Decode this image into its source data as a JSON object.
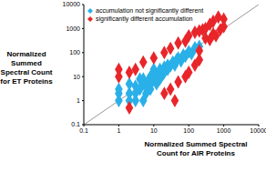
{
  "chart_data": {
    "type": "scatter",
    "log": true,
    "grid": false,
    "legend": "upper left",
    "xlabel": "Normalized Summed Spectral Count for AIR Proteins",
    "ylabel": "Normalized Summed Spectral Count for ET Proteins",
    "xlim": [
      0.1,
      10000
    ],
    "ylim": [
      0.1,
      10000
    ],
    "xticks": [
      0.1,
      1,
      10,
      100,
      1000,
      10000
    ],
    "yticks": [
      0.1,
      1,
      10,
      100,
      1000,
      10000
    ],
    "series": [
      {
        "name": "accumulation not significantly different",
        "color": "#2ab0e8",
        "marker": "diamond",
        "x": [
          2,
          3,
          3,
          4,
          5,
          5,
          6,
          7,
          8,
          9,
          10,
          10,
          12,
          15,
          15,
          18,
          20,
          20,
          25,
          25,
          30,
          35,
          40,
          45,
          50,
          60,
          70,
          80,
          100,
          120,
          150,
          200,
          1,
          1,
          2,
          2,
          1,
          4,
          6,
          3,
          8,
          10,
          12,
          15,
          5
        ],
        "values": [
          2,
          2,
          4,
          3,
          5,
          8,
          4,
          7,
          10,
          6,
          12,
          8,
          10,
          15,
          20,
          12,
          25,
          15,
          30,
          20,
          28,
          40,
          30,
          50,
          60,
          45,
          80,
          70,
          110,
          90,
          160,
          180,
          2,
          3,
          5,
          1,
          1,
          8,
          2,
          1,
          3,
          20,
          5,
          8,
          1
        ]
      },
      {
        "name": "significantly different accumulation",
        "color": "#e8262a",
        "marker": "diamond",
        "x": [
          1,
          1,
          2,
          3,
          2,
          5,
          10,
          20,
          30,
          50,
          80,
          100,
          150,
          200,
          300,
          400,
          500,
          700,
          1000,
          300,
          200,
          400,
          600,
          800,
          1000,
          30,
          50,
          80,
          100,
          150,
          200,
          40,
          20,
          250,
          500
        ],
        "values": [
          10,
          20,
          15,
          20,
          0.5,
          40,
          60,
          100,
          150,
          250,
          300,
          500,
          700,
          800,
          1000,
          1500,
          2000,
          3000,
          2500,
          400,
          120,
          350,
          500,
          900,
          1200,
          3,
          6,
          10,
          15,
          30,
          50,
          1,
          2,
          900,
          600
        ]
      }
    ]
  }
}
